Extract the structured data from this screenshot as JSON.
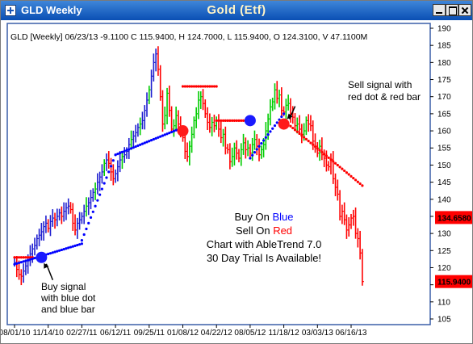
{
  "window": {
    "title": "GLD Weekly",
    "chart_title": "Gold (Etf)"
  },
  "colors": {
    "titlebar": "#0a4fb4",
    "frame": "#3a5fa8",
    "up_bar": "#00cc00",
    "down_bar": "#ff0000",
    "neutral_bar": "#1f1fd0",
    "stop_buy_dots": "#0000ff",
    "stop_sell_dots": "#ff0000",
    "price_label_bg": "#ff0000"
  },
  "chart_data": {
    "type": "line",
    "title": "Gold (Etf)",
    "header": "GLD [Weekly] 06/23/13  -9.1100 C 115.9400, H 124.7000, L 115.9400, O 124.3100, V 47.1100M",
    "xlabel": "",
    "ylabel": "",
    "ylim": [
      105,
      190
    ],
    "y_ticks": [
      105,
      110,
      115,
      120,
      125,
      130,
      135,
      140,
      145,
      150,
      155,
      160,
      165,
      170,
      175,
      180,
      185,
      190
    ],
    "x_tick_labels": [
      "08/01/10",
      "11/14/10",
      "02/27/11",
      "06/12/11",
      "09/25/11",
      "01/08/12",
      "04/22/12",
      "08/05/12",
      "11/18/12",
      "03/03/13",
      "06/16/13"
    ],
    "grid": false,
    "legend": "none",
    "series": [
      {
        "type": "weekly-price-bars",
        "bars_per_tick": 15,
        "close_values": [
          121.5,
          119.5,
          118.0,
          117.5,
          119.0,
          120.5,
          122.0,
          124.0,
          125.5,
          126.5,
          128.5,
          129.5,
          130.5,
          132.0,
          133.0,
          131.5,
          133.5,
          134.5,
          134.0,
          135.0,
          136.0,
          135.0,
          136.5,
          137.5,
          138.0,
          137.0,
          133.0,
          131.0,
          133.0,
          134.0,
          135.0,
          136.5,
          138.0,
          139.0,
          140.5,
          142.0,
          143.0,
          145.0,
          146.5,
          148.0,
          150.5,
          151.5,
          150.5,
          148.0,
          146.0,
          147.5,
          149.5,
          151.5,
          152.5,
          153.0,
          154.0,
          156.0,
          157.5,
          158.5,
          159.5,
          161.0,
          162.0,
          163.0,
          166.0,
          169.0,
          172.0,
          176.0,
          180.0,
          182.5,
          178.0,
          170.0,
          162.0,
          164.5,
          171.0,
          166.0,
          160.5,
          161.5,
          164.5,
          162.0,
          160.0,
          158.0,
          154.0,
          152.5,
          155.5,
          159.0,
          163.0,
          165.0,
          169.0,
          170.0,
          168.0,
          165.0,
          162.5,
          161.0,
          162.5,
          161.5,
          163.0,
          160.5,
          158.0,
          159.0,
          155.0,
          154.5,
          151.0,
          152.5,
          155.0,
          153.5,
          152.0,
          154.5,
          156.5,
          154.5,
          155.0,
          153.5,
          156.0,
          157.5,
          155.5,
          153.0,
          154.5,
          156.0,
          160.0,
          163.5,
          167.0,
          168.5,
          172.0,
          169.5,
          170.5,
          166.0,
          165.5,
          167.5,
          168.0,
          165.0,
          164.0,
          161.5,
          162.0,
          160.5,
          159.0,
          160.0,
          163.0,
          162.0,
          161.5,
          157.0,
          155.5,
          153.5,
          155.5,
          153.0,
          152.0,
          150.0,
          149.5,
          151.5,
          146.0,
          143.5,
          141.5,
          135.0,
          136.5,
          134.0,
          131.0,
          132.5,
          134.5,
          135.0,
          130.0,
          128.5,
          124.3,
          115.94
        ],
        "close_values_note": "",
        "last_close": 115.94
      },
      {
        "type": "trailing-stop-dots",
        "segments": [
          {
            "color": "red",
            "from_label": "08/01/10",
            "level": 123.0
          },
          {
            "color": "blue",
            "from_label": "08/01/10",
            "level_start": 121.0,
            "level_end": 127.0
          },
          {
            "color": "blue",
            "from_label": "02/27/11",
            "level_start": 128.0,
            "level_end": 153.0
          },
          {
            "color": "blue",
            "from_label": "06/12/11",
            "level_start": 153.0,
            "level_end": 161.0
          },
          {
            "color": "red",
            "from_label": "01/08/12",
            "level": 173.0
          },
          {
            "color": "red",
            "from_label": "04/22/12",
            "level": 163.0
          },
          {
            "color": "blue",
            "from_label": "08/05/12",
            "level_start": 152.0,
            "level_end": 165.0
          },
          {
            "color": "red",
            "from_label": "11/18/12",
            "level_start": 163.0,
            "level_end": 144.0
          }
        ]
      }
    ],
    "signals": [
      {
        "type": "buy",
        "color": "blue",
        "near_label": "08/01/10",
        "value": 123.0
      },
      {
        "type": "sell",
        "color": "red",
        "near_label": "01/08/12",
        "value": 160.0
      },
      {
        "type": "buy",
        "color": "blue",
        "near_label": "08/05/12",
        "value": 163.0
      },
      {
        "type": "sell",
        "color": "red",
        "near_label": "11/18/12",
        "value": 162.0
      }
    ],
    "price_labels": [
      {
        "text": "134.6580",
        "value": 134.658
      },
      {
        "text": "115.9400",
        "value": 115.94
      }
    ],
    "annotations": {
      "buy_signal": [
        "Buy signal",
        "with blue dot",
        "and blue bar"
      ],
      "sell_signal": [
        "Sell signal with",
        "red dot & red bar"
      ],
      "legend_lines": [
        {
          "parts": [
            {
              "text": "Buy On ",
              "color": "#000000"
            },
            {
              "text": "Blue",
              "color": "#0000ff"
            }
          ]
        },
        {
          "parts": [
            {
              "text": "Sell On ",
              "color": "#000000"
            },
            {
              "text": "Red",
              "color": "#ff0000"
            }
          ]
        },
        {
          "parts": [
            {
              "text": "Chart with AbleTrend 7.0",
              "color": "#000000"
            }
          ]
        },
        {
          "parts": [
            {
              "text": "30 Day Trial Is Available!",
              "color": "#000000"
            }
          ]
        }
      ]
    }
  }
}
